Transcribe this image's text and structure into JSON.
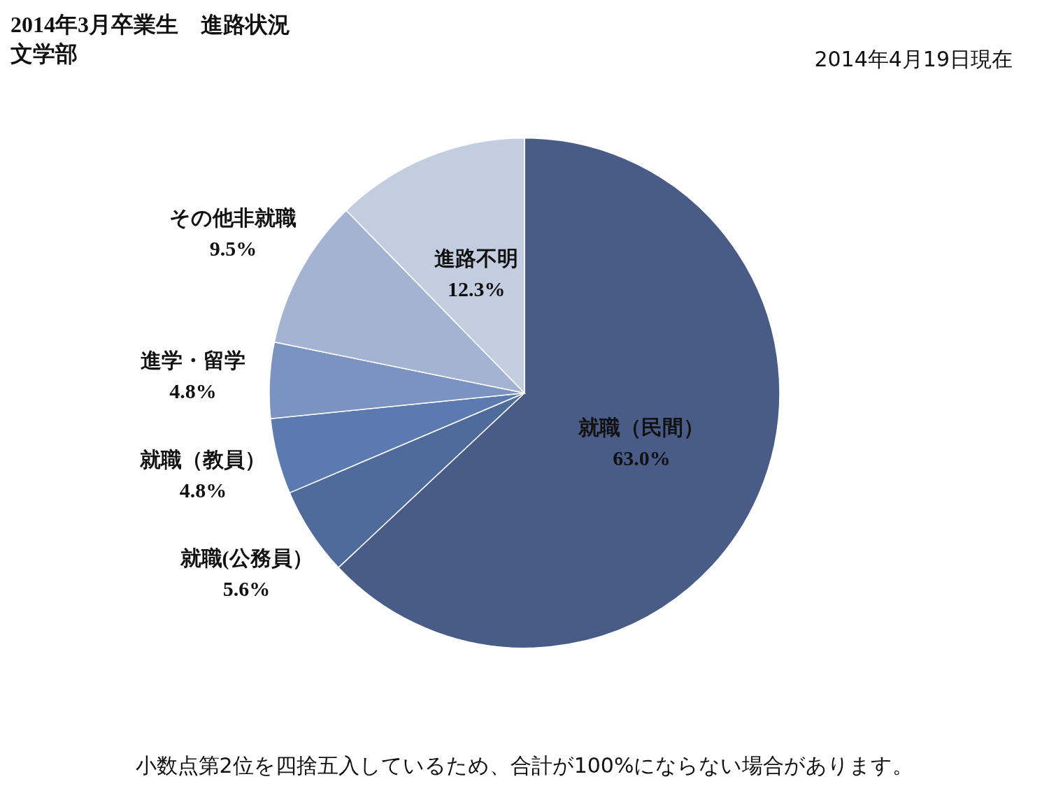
{
  "chart_data": {
    "type": "pie",
    "title": "2014年3月卒業生　進路状況",
    "subtitle": "文学部",
    "annotations": [
      "2014年4月19日現在",
      "小数点第2位を四捨五入しているため、合計が100%にならない場合があります。"
    ],
    "categories": [
      "就職（民間）",
      "就職(公務員）",
      "就職（教員）",
      "進学・留学",
      "その他非就職",
      "進路不明"
    ],
    "values": [
      63.0,
      5.6,
      4.8,
      4.8,
      9.5,
      12.3
    ],
    "value_labels": [
      "63.0%",
      "5.6%",
      "4.8%",
      "4.8%",
      "9.5%",
      "12.3%"
    ],
    "colors": [
      "#485c87",
      "#4f6b9c",
      "#5b7ab0",
      "#7b93c0",
      "#a4b3d1",
      "#c3cde0"
    ]
  }
}
